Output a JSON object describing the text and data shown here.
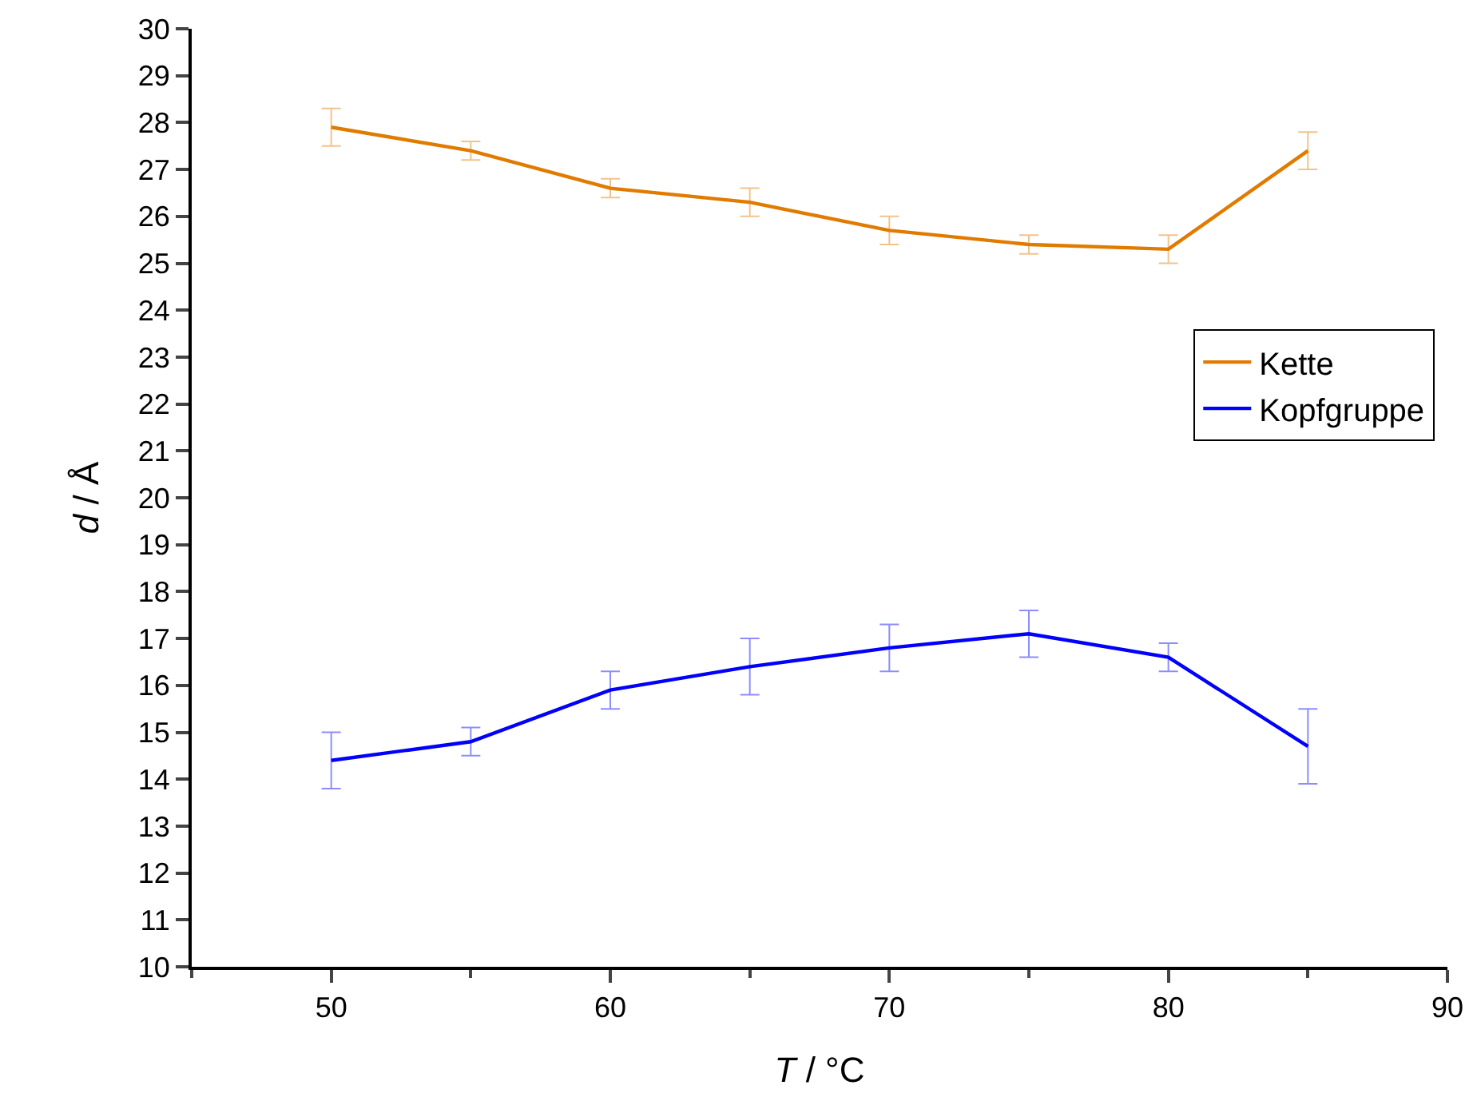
{
  "chart_data": {
    "type": "line",
    "xlabel": "T / °C",
    "ylabel": "d / Å",
    "x": [
      50,
      55,
      60,
      65,
      70,
      75,
      80,
      85
    ],
    "series": [
      {
        "name": "Kette",
        "color": "#e07b00",
        "values": [
          27.9,
          27.4,
          26.6,
          26.3,
          25.7,
          25.4,
          25.3,
          27.4
        ],
        "errors": [
          0.4,
          0.2,
          0.2,
          0.3,
          0.3,
          0.2,
          0.3,
          0.4
        ]
      },
      {
        "name": "Kopfgruppe",
        "color": "#0000ff",
        "values": [
          14.4,
          14.8,
          15.9,
          16.4,
          16.8,
          17.1,
          16.6,
          14.7
        ],
        "errors": [
          0.6,
          0.3,
          0.4,
          0.6,
          0.5,
          0.5,
          0.3,
          0.8
        ]
      }
    ],
    "xlim": [
      45,
      90
    ],
    "xticks": [
      50,
      60,
      70,
      80,
      90
    ],
    "ylim": [
      10,
      30
    ],
    "yticks": [
      10,
      11,
      12,
      13,
      14,
      15,
      16,
      17,
      18,
      19,
      20,
      21,
      22,
      23,
      24,
      25,
      26,
      27,
      28,
      29,
      30
    ],
    "grid": false,
    "legend": "right",
    "line_style": "solid"
  }
}
